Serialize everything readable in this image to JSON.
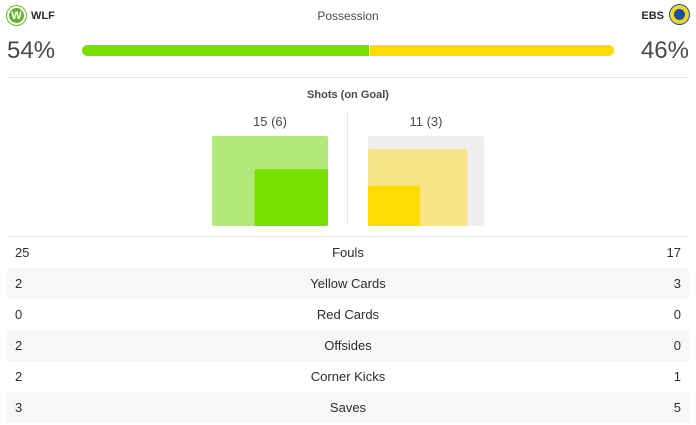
{
  "header": {
    "title": "Possession",
    "home_abbr": "WLF",
    "home_logo_glyph": "W",
    "away_abbr": "EBS",
    "home_pct_label": "54%",
    "away_pct_label": "46%",
    "home_possession": 54,
    "away_possession": 46,
    "home_color": "#77e000",
    "away_color": "#ffdc00"
  },
  "shots": {
    "title": "Shots (on Goal)",
    "home_label": "15 (6)",
    "away_label": "11 (3)",
    "home_total": 15,
    "home_on_goal": 6,
    "away_total": 11,
    "away_on_goal": 3,
    "max_total": 15
  },
  "stats": [
    {
      "label": "Fouls",
      "home": "25",
      "away": "17"
    },
    {
      "label": "Yellow Cards",
      "home": "2",
      "away": "3"
    },
    {
      "label": "Red Cards",
      "home": "0",
      "away": "0"
    },
    {
      "label": "Offsides",
      "home": "2",
      "away": "0"
    },
    {
      "label": "Corner Kicks",
      "home": "2",
      "away": "1"
    },
    {
      "label": "Saves",
      "home": "3",
      "away": "5"
    }
  ]
}
